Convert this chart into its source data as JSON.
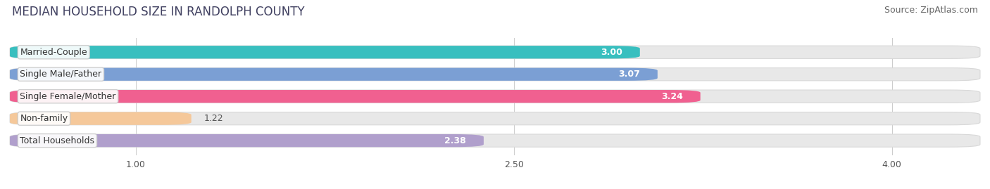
{
  "title": "MEDIAN HOUSEHOLD SIZE IN RANDOLPH COUNTY",
  "source": "Source: ZipAtlas.com",
  "categories": [
    "Married-Couple",
    "Single Male/Father",
    "Single Female/Mother",
    "Non-family",
    "Total Households"
  ],
  "values": [
    3.0,
    3.07,
    3.24,
    1.22,
    2.38
  ],
  "bar_colors": [
    "#38bfbf",
    "#7b9fd4",
    "#f06090",
    "#f5c89a",
    "#b09fcc"
  ],
  "value_labels": [
    "3.00",
    "3.07",
    "3.24",
    "1.22",
    "2.38"
  ],
  "xlim": [
    0.5,
    4.35
  ],
  "xticks": [
    1.0,
    2.5,
    4.0
  ],
  "xtick_labels": [
    "1.00",
    "2.50",
    "4.00"
  ],
  "background_color": "#ffffff",
  "bar_bg_color": "#e8e8e8",
  "bar_bg_edge_color": "#d8d8d8",
  "title_fontsize": 12,
  "source_fontsize": 9,
  "label_fontsize": 9,
  "value_fontsize": 9,
  "tick_fontsize": 9,
  "bar_height": 0.58,
  "value_outside_threshold": 1.5
}
